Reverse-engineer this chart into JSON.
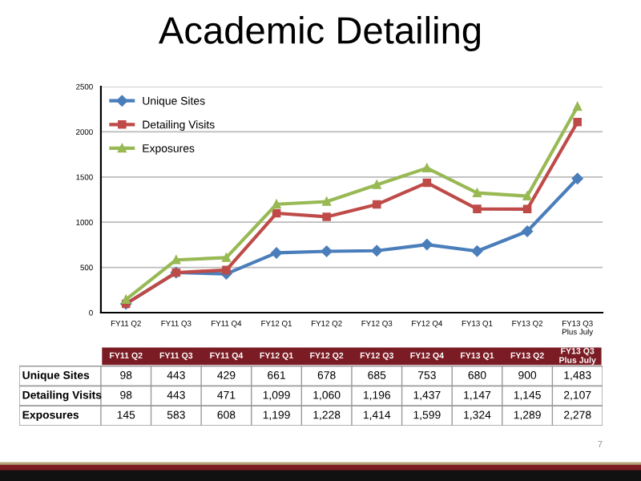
{
  "chart_data": {
    "type": "line",
    "title": "Academic Detailing",
    "categories": [
      "FY11 Q2",
      "FY11 Q3",
      "FY11 Q4",
      "FY12 Q1",
      "FY12 Q2",
      "FY12 Q3",
      "FY12 Q4",
      "FY13 Q1",
      "FY13 Q2",
      "FY13 Q3\nPlus July"
    ],
    "series": [
      {
        "name": "Unique Sites",
        "color": "#4a7ebb",
        "marker": "diamond",
        "values": [
          98,
          443,
          429,
          661,
          678,
          685,
          753,
          680,
          900,
          1483
        ],
        "value_labels": [
          "98",
          "443",
          "429",
          "661",
          "678",
          "685",
          "753",
          "680",
          "900",
          "1,483"
        ]
      },
      {
        "name": "Detailing Visits",
        "color": "#be4b48",
        "marker": "square",
        "values": [
          98,
          443,
          471,
          1099,
          1060,
          1196,
          1437,
          1147,
          1145,
          2107
        ],
        "value_labels": [
          "98",
          "443",
          "471",
          "1,099",
          "1,060",
          "1,196",
          "1,437",
          "1,147",
          "1,145",
          "2,107"
        ]
      },
      {
        "name": "Exposures",
        "color": "#98b954",
        "marker": "triangle",
        "values": [
          145,
          583,
          608,
          1199,
          1228,
          1414,
          1599,
          1324,
          1289,
          2278
        ],
        "value_labels": [
          "145",
          "583",
          "608",
          "1,199",
          "1,228",
          "1,414",
          "1,599",
          "1,324",
          "1,289",
          "2,278"
        ]
      }
    ],
    "ylim": [
      0,
      2500
    ],
    "yticks": [
      0,
      500,
      1000,
      1500,
      2000,
      2500
    ],
    "grid": "y",
    "legend": "top left",
    "annotations": [
      "7"
    ]
  }
}
